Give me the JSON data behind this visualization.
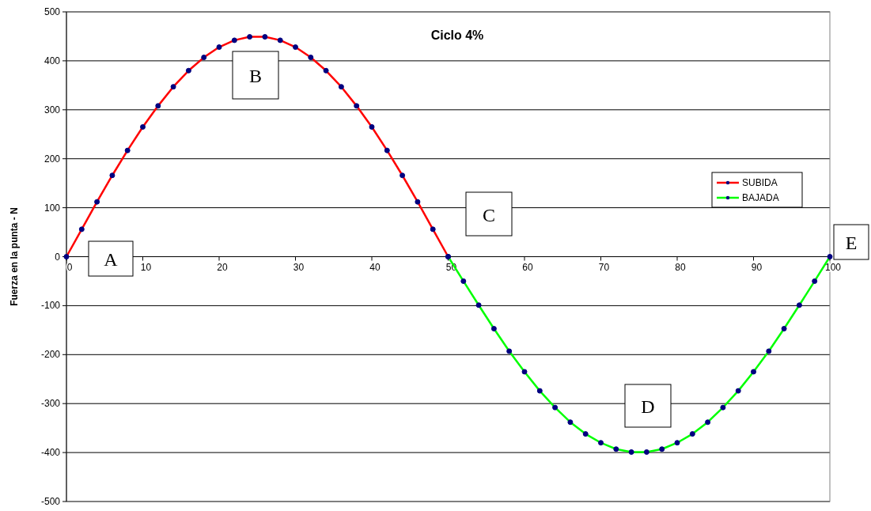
{
  "chart_data": {
    "type": "line",
    "title": "Ciclo 4%",
    "ylabel": "Fuerza en la punta - N",
    "xlim": [
      0,
      100
    ],
    "xticks": [
      0,
      10,
      20,
      30,
      40,
      50,
      60,
      70,
      80,
      90,
      100
    ],
    "ylim": [
      -500,
      500
    ],
    "yticks": [
      -500,
      -400,
      -300,
      -200,
      -100,
      0,
      100,
      200,
      300,
      400,
      500
    ],
    "grid": "y",
    "legend": "right",
    "marker": "circle",
    "line_style": "solid",
    "series": [
      {
        "name": "SUBIDA",
        "color": "#ff0000",
        "x": [
          0,
          2,
          4,
          6,
          8,
          10,
          12,
          14,
          16,
          18,
          20,
          22,
          24,
          26,
          28,
          30,
          32,
          34,
          36,
          38,
          40,
          42,
          44,
          46,
          48,
          50
        ],
        "values": [
          0,
          56,
          112,
          166,
          217,
          265,
          308,
          347,
          380,
          407,
          428,
          442,
          449,
          449,
          442,
          428,
          407,
          380,
          347,
          308,
          265,
          217,
          166,
          112,
          56,
          0
        ]
      },
      {
        "name": "BAJADA",
        "color": "#00ff00",
        "x": [
          50,
          52,
          54,
          56,
          58,
          60,
          62,
          64,
          66,
          68,
          70,
          72,
          74,
          76,
          78,
          80,
          82,
          84,
          86,
          88,
          90,
          92,
          94,
          96,
          98,
          100
        ],
        "values": [
          0,
          -50,
          -99,
          -147,
          -193,
          -235,
          -274,
          -308,
          -338,
          -362,
          -380,
          -393,
          -399,
          -399,
          -393,
          -380,
          -362,
          -338,
          -308,
          -274,
          -235,
          -193,
          -147,
          -99,
          -50,
          0
        ]
      }
    ],
    "annotations": [
      "A",
      "B",
      "C",
      "D",
      "E"
    ]
  }
}
